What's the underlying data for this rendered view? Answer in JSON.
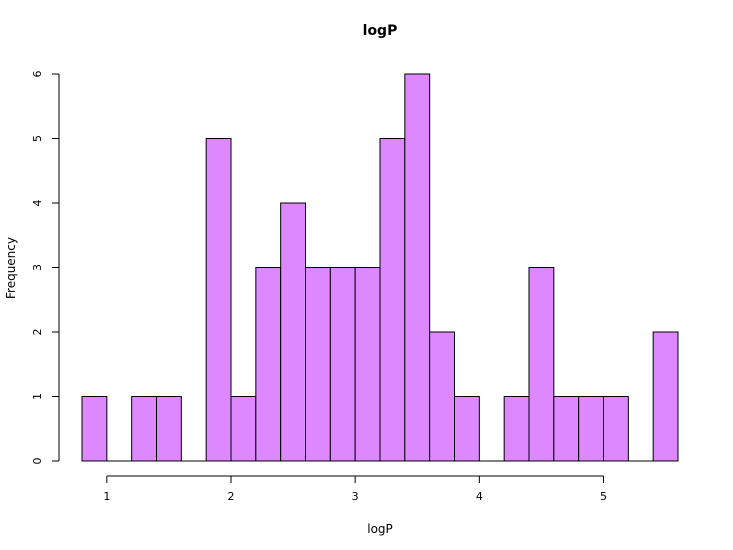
{
  "chart_data": {
    "type": "bar",
    "title": "logP",
    "xlabel": "logP",
    "ylabel": "Frequency",
    "bin_edges": [
      0.8,
      1.0,
      1.2,
      1.4,
      1.6,
      1.8,
      2.0,
      2.2,
      2.4,
      2.6,
      2.8,
      3.0,
      3.2,
      3.4,
      3.6,
      3.8,
      4.0,
      4.2,
      4.4,
      4.6,
      4.8,
      5.0,
      5.2,
      5.4,
      5.6
    ],
    "values": [
      1,
      0,
      1,
      1,
      0,
      5,
      1,
      3,
      4,
      3,
      3,
      3,
      5,
      6,
      2,
      1,
      0,
      1,
      3,
      1,
      1,
      1,
      0,
      2
    ],
    "xlim": [
      0.8,
      5.6
    ],
    "ylim": [
      0,
      6
    ],
    "x_ticks": [
      1,
      2,
      3,
      4,
      5
    ],
    "y_ticks": [
      0,
      1,
      2,
      3,
      4,
      5,
      6
    ],
    "bar_color": "#DD88FF",
    "bar_edge_color": "#000000",
    "grid": false
  }
}
